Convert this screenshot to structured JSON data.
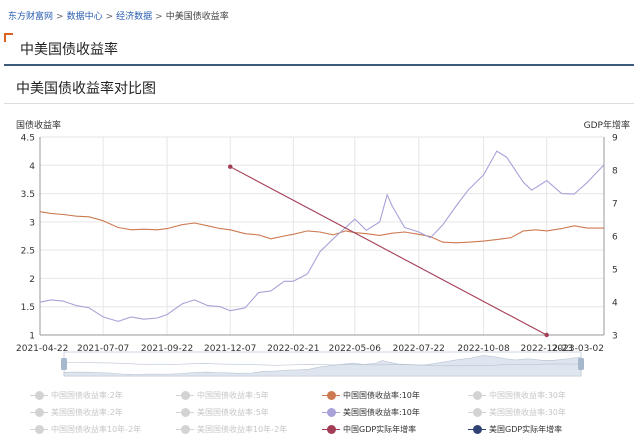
{
  "breadcrumb": [
    "东方财富网",
    "数据中心",
    "经济数据",
    "中美国债收益率"
  ],
  "breadcrumb_sep": ">",
  "page_title": "中美国债收益率",
  "chart_heading": "中美国债收益率对比图",
  "colors": {
    "cn10": "#cd7a52",
    "us10": "#a8a2d8",
    "cngdp": "#a33c55",
    "usgdp": "#2e4273",
    "axis": "#999999",
    "grid": "#e6e6e6",
    "inactive": "#d3d3d3"
  },
  "legend": {
    "items": [
      {
        "label": "中国国债收益率:2年",
        "active": false,
        "color": "#d3d3d3"
      },
      {
        "label": "中国国债收益率:5年",
        "active": false,
        "color": "#d3d3d3"
      },
      {
        "label": "中国国债收益率:10年",
        "active": true,
        "color": "#cd7a52"
      },
      {
        "label": "中国国债收益率:30年",
        "active": false,
        "color": "#d3d3d3"
      },
      {
        "label": "美国国债收益率:2年",
        "active": false,
        "color": "#d3d3d3"
      },
      {
        "label": "美国国债收益率:5年",
        "active": false,
        "color": "#d3d3d3"
      },
      {
        "label": "美国国债收益率:10年",
        "active": true,
        "color": "#a8a2d8"
      },
      {
        "label": "美国国债收益率:30年",
        "active": false,
        "color": "#d3d3d3"
      },
      {
        "label": "中国国债收益率10年-2年",
        "active": false,
        "color": "#d3d3d3"
      },
      {
        "label": "美国国债收益率10年-2年",
        "active": false,
        "color": "#d3d3d3"
      },
      {
        "label": "中国GDP实际年增率",
        "active": true,
        "color": "#a33c55"
      },
      {
        "label": "美国GDP实际年增率",
        "active": true,
        "color": "#2e4273"
      }
    ]
  },
  "chart_data": {
    "type": "line",
    "ylabel_left": "国债收益率",
    "ylabel_right": "GDP年增率",
    "ylim_left": [
      1,
      4.5
    ],
    "ylim_right": [
      3,
      9
    ],
    "yticks_left": [
      "1",
      "1.5",
      "2",
      "2.5",
      "3",
      "3.5",
      "4",
      "4.5"
    ],
    "yticks_right": [
      "3",
      "4",
      "5",
      "6",
      "7",
      "8",
      "9"
    ],
    "x_range": [
      "2021-04-22",
      "2023-03-02"
    ],
    "x_ticks": [
      "2021-04-22",
      "2021-07-07",
      "2021-09-22",
      "2021-12-07",
      "2022-02-21",
      "2022-05-06",
      "2022-07-22",
      "2022-10-08",
      "2022-12-23",
      "2023-03-02"
    ],
    "grid": true,
    "legend_position": "bottom",
    "series": [
      {
        "name": "中国国债收益率:10年",
        "axis": "left",
        "x": [
          "2021-04-22",
          "2021-05-05",
          "2021-05-20",
          "2021-06-05",
          "2021-06-20",
          "2021-07-07",
          "2021-07-25",
          "2021-08-10",
          "2021-08-25",
          "2021-09-10",
          "2021-09-22",
          "2021-10-10",
          "2021-10-25",
          "2021-11-10",
          "2021-11-25",
          "2021-12-07",
          "2021-12-25",
          "2022-01-10",
          "2022-01-25",
          "2022-02-10",
          "2022-02-21",
          "2022-03-10",
          "2022-03-25",
          "2022-04-10",
          "2022-04-25",
          "2022-05-06",
          "2022-05-20",
          "2022-06-05",
          "2022-06-20",
          "2022-07-05",
          "2022-07-22",
          "2022-08-05",
          "2022-08-20",
          "2022-09-05",
          "2022-09-20",
          "2022-10-08",
          "2022-10-25",
          "2022-11-10",
          "2022-11-25",
          "2022-12-10",
          "2022-12-23",
          "2023-01-10",
          "2023-01-25",
          "2023-02-10",
          "2023-03-02"
        ],
        "values": [
          3.18,
          3.15,
          3.13,
          3.1,
          3.09,
          3.02,
          2.9,
          2.86,
          2.87,
          2.86,
          2.88,
          2.95,
          2.98,
          2.93,
          2.88,
          2.86,
          2.79,
          2.77,
          2.7,
          2.75,
          2.78,
          2.84,
          2.82,
          2.77,
          2.84,
          2.81,
          2.79,
          2.76,
          2.8,
          2.82,
          2.78,
          2.74,
          2.64,
          2.63,
          2.64,
          2.66,
          2.69,
          2.72,
          2.84,
          2.86,
          2.84,
          2.88,
          2.93,
          2.89,
          2.89
        ]
      },
      {
        "name": "美国国债收益率:10年",
        "axis": "left",
        "x": [
          "2021-04-22",
          "2021-05-05",
          "2021-05-20",
          "2021-06-05",
          "2021-06-20",
          "2021-07-07",
          "2021-07-25",
          "2021-08-10",
          "2021-08-25",
          "2021-09-10",
          "2021-09-22",
          "2021-10-10",
          "2021-10-25",
          "2021-11-10",
          "2021-11-25",
          "2021-12-07",
          "2021-12-25",
          "2022-01-10",
          "2022-01-25",
          "2022-02-10",
          "2022-02-21",
          "2022-03-10",
          "2022-03-25",
          "2022-04-10",
          "2022-04-25",
          "2022-05-06",
          "2022-05-20",
          "2022-06-05",
          "2022-06-14",
          "2022-06-20",
          "2022-07-05",
          "2022-07-22",
          "2022-08-05",
          "2022-08-20",
          "2022-09-05",
          "2022-09-20",
          "2022-10-08",
          "2022-10-24",
          "2022-11-05",
          "2022-11-25",
          "2022-12-05",
          "2022-12-23",
          "2023-01-10",
          "2023-01-25",
          "2023-02-10",
          "2023-03-02"
        ],
        "values": [
          1.58,
          1.62,
          1.6,
          1.52,
          1.48,
          1.32,
          1.24,
          1.32,
          1.28,
          1.3,
          1.36,
          1.55,
          1.62,
          1.52,
          1.5,
          1.43,
          1.48,
          1.75,
          1.78,
          1.95,
          1.95,
          2.08,
          2.47,
          2.7,
          2.9,
          3.05,
          2.85,
          3.0,
          3.48,
          3.28,
          2.9,
          2.82,
          2.72,
          2.95,
          3.28,
          3.57,
          3.83,
          4.25,
          4.14,
          3.7,
          3.56,
          3.73,
          3.5,
          3.49,
          3.7,
          4.01
        ]
      },
      {
        "name": "中国GDP实际年增率",
        "axis": "right",
        "x": [
          "2021-12-07",
          "2022-12-23"
        ],
        "values": [
          8.1,
          3.0
        ]
      }
    ]
  }
}
